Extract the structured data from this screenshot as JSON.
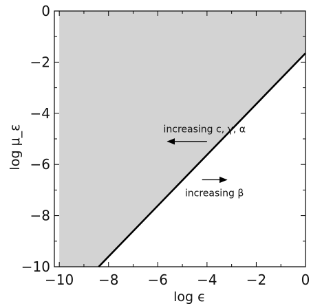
{
  "chart_data": {
    "type": "area",
    "xlabel": "log ϵ",
    "ylabel": "log μ_ε",
    "xlim": [
      -10.2,
      0
    ],
    "ylim": [
      -10,
      0
    ],
    "x_ticks": [
      -10,
      -8,
      -6,
      -4,
      -2,
      0
    ],
    "y_ticks": [
      0,
      -2,
      -4,
      -6,
      -8,
      -10
    ],
    "x_tick_labels": [
      "−10",
      "−8",
      "−6",
      "−4",
      "−2",
      "0"
    ],
    "y_tick_labels": [
      "0",
      "−2",
      "−4",
      "−6",
      "−8",
      "−10"
    ],
    "boundary_line": {
      "x": [
        -8.4,
        0
      ],
      "y": [
        -10,
        -1.65
      ]
    },
    "shaded_region": "above boundary line",
    "fill_color": "#d3d3d3",
    "line_color": "#000000",
    "grid": false,
    "annotations": [
      {
        "text": "increasing c, γ, α",
        "arrow_direction": "left",
        "arrow_start": [
          -4.0,
          -5.1
        ],
        "arrow_end": [
          -5.6,
          -5.1
        ]
      },
      {
        "text": "increasing β",
        "arrow_direction": "right",
        "arrow_start": [
          -4.2,
          -6.6
        ],
        "arrow_end": [
          -3.2,
          -6.6
        ]
      }
    ]
  }
}
